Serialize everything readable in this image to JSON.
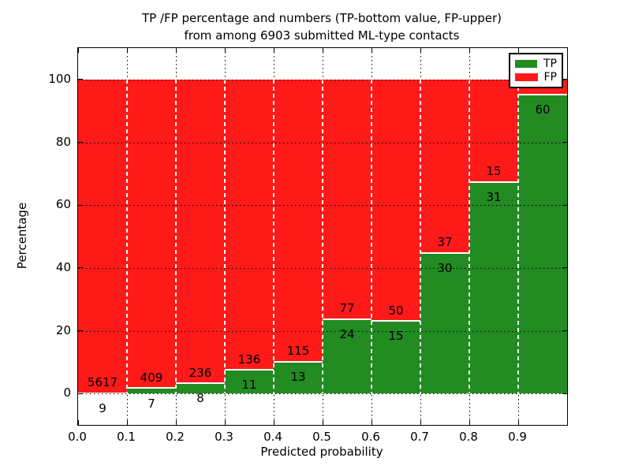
{
  "chart_data": {
    "type": "bar",
    "stacked": true,
    "title_line1": "TP /FP percentage and numbers (TP-bottom value, FP-upper)",
    "title_line2": "from among 6903 submitted ML-type contacts",
    "xlabel": "Predicted probability",
    "ylabel": "Percentage",
    "xlim": [
      0.0,
      1.0
    ],
    "ylim": [
      -10,
      110
    ],
    "x_tick_labels": [
      "0.0",
      "0.1",
      "0.2",
      "0.3",
      "0.4",
      "0.5",
      "0.6",
      "0.7",
      "0.8",
      "0.9"
    ],
    "x_tick_values": [
      0.0,
      0.1,
      0.2,
      0.3,
      0.4,
      0.5,
      0.6,
      0.7,
      0.8,
      0.9
    ],
    "y_tick_labels": [
      "0",
      "20",
      "40",
      "60",
      "80",
      "100"
    ],
    "y_tick_values": [
      0,
      20,
      40,
      60,
      80,
      100
    ],
    "grid": {
      "show": true,
      "style": "dotted"
    },
    "bins": {
      "edges": [
        0.0,
        0.1,
        0.2,
        0.3,
        0.4,
        0.5,
        0.6,
        0.7,
        0.8,
        0.9,
        1.0
      ],
      "tp_counts": [
        9,
        7,
        8,
        11,
        13,
        24,
        15,
        30,
        31,
        60
      ],
      "tp_count_labels": [
        "9",
        "7",
        "8",
        "11",
        "13",
        "24",
        "15",
        "30",
        "31",
        "60"
      ],
      "fp_count_labels": [
        "5617",
        "409",
        "236",
        "136",
        "115",
        "77",
        "50",
        "37",
        "15",
        ""
      ],
      "tp_pct": [
        0.16,
        1.68,
        3.28,
        7.48,
        10.16,
        23.76,
        23.08,
        44.78,
        67.39,
        95.24
      ]
    },
    "series": [
      {
        "name": "TP",
        "color": "#228b22"
      },
      {
        "name": "FP",
        "color": "#ff1a1a"
      }
    ],
    "legend": {
      "position": "upper right",
      "entries": [
        {
          "label": "TP",
          "color": "#228b22"
        },
        {
          "label": "FP",
          "color": "#ff1a1a"
        }
      ]
    }
  },
  "colors": {
    "tp_green": "#228b22",
    "fp_red": "#ff1a1a",
    "grid_line": "#000000",
    "bar_edge": "#ffffff",
    "background": "#ffffff"
  }
}
